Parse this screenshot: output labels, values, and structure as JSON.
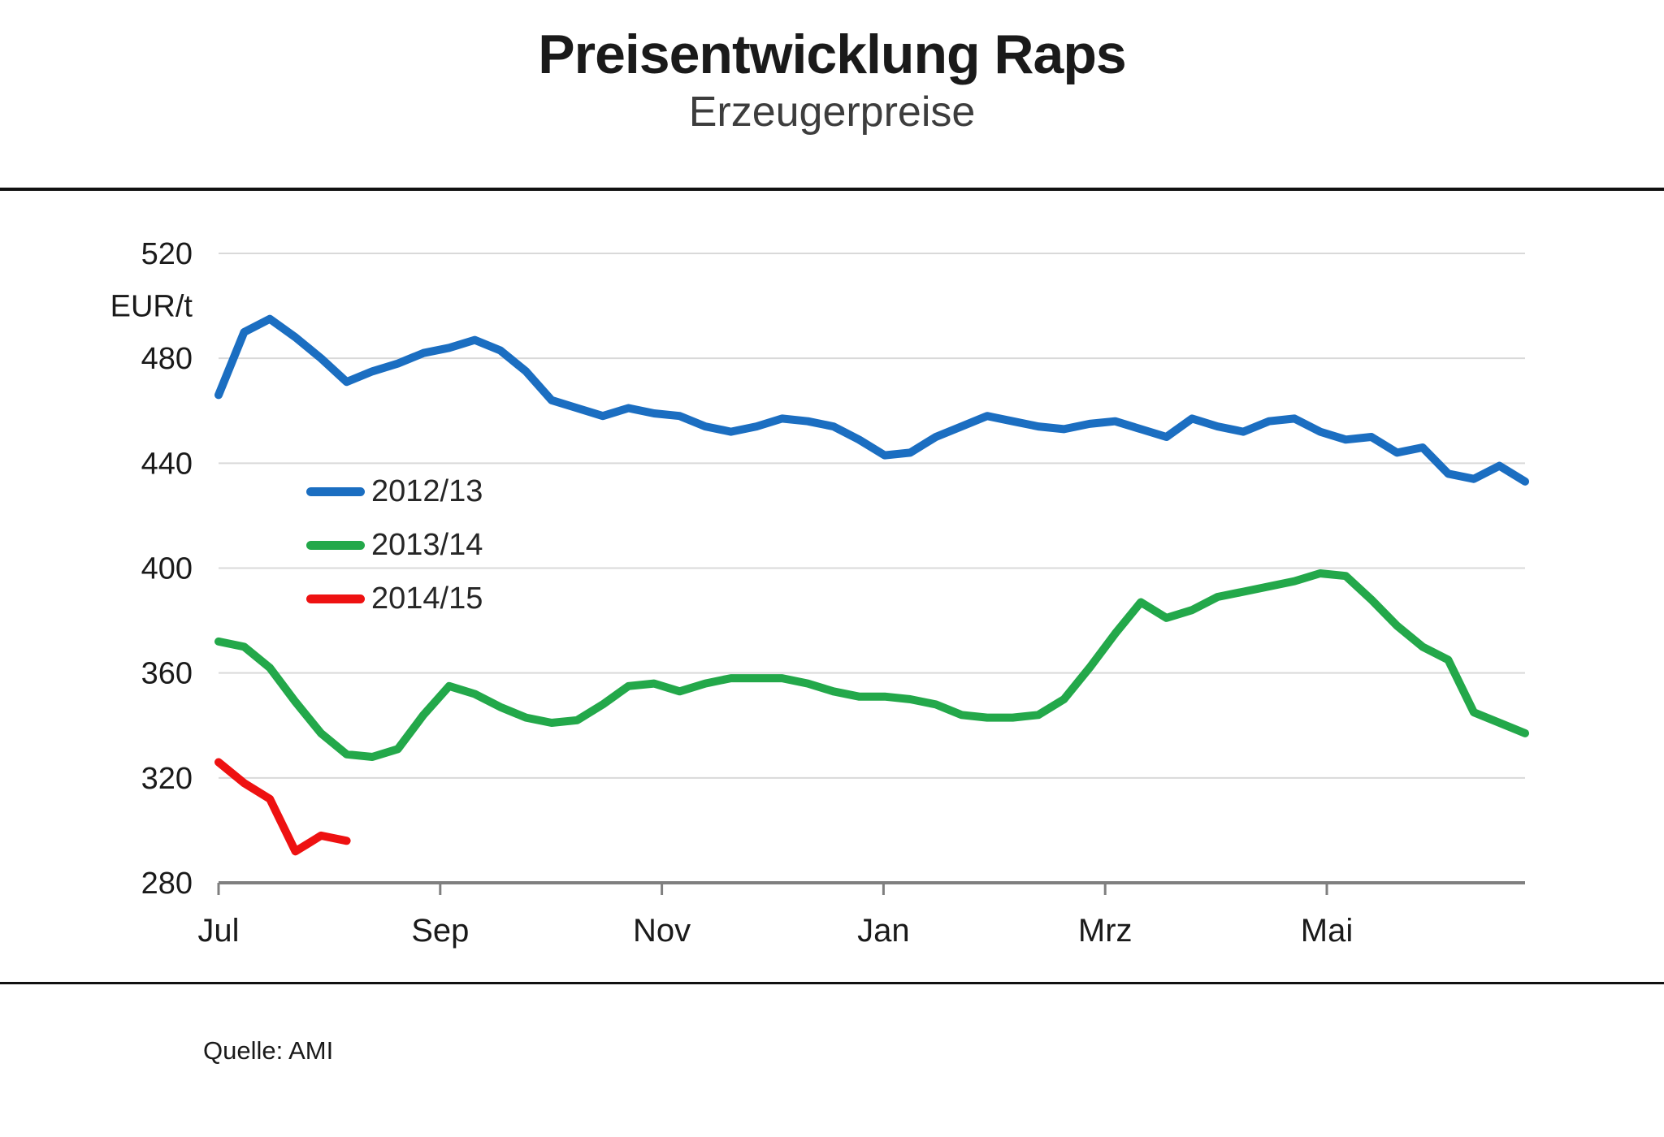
{
  "page": {
    "title": "Preisentwicklung Raps",
    "subtitle": "Erzeugerpreise",
    "source": "Quelle: AMI"
  },
  "chart_data": {
    "type": "line",
    "title": "Preisentwicklung Raps",
    "subtitle": "Erzeugerpreise",
    "ylabel": "EUR/t",
    "ylim": [
      280,
      520
    ],
    "y_ticks": [
      520,
      480,
      440,
      400,
      360,
      320,
      280
    ],
    "x_tick_labels": [
      "Jul",
      "Sep",
      "Nov",
      "Jan",
      "Mrz",
      "Mai"
    ],
    "x_unit": "weeks, Jul through Jun of each season",
    "grid": "horizontal",
    "legend_position": "inside-left",
    "colors": {
      "grid": "#d9d9d9",
      "axis": "#7f7f7f",
      "text": "#1a1a1a"
    },
    "series": [
      {
        "name": "2012/13",
        "color": "#1b6ec1",
        "values": [
          466,
          490,
          495,
          488,
          480,
          471,
          475,
          478,
          482,
          484,
          487,
          483,
          475,
          464,
          461,
          458,
          461,
          459,
          458,
          454,
          452,
          454,
          457,
          456,
          454,
          449,
          443,
          444,
          450,
          454,
          458,
          456,
          454,
          453,
          455,
          456,
          453,
          450,
          457,
          454,
          452,
          456,
          457,
          452,
          449,
          450,
          444,
          446,
          436,
          434,
          439,
          433
        ]
      },
      {
        "name": "2013/14",
        "color": "#23a84a",
        "values": [
          372,
          370,
          362,
          349,
          337,
          329,
          328,
          331,
          344,
          355,
          352,
          347,
          343,
          341,
          342,
          348,
          355,
          356,
          353,
          356,
          358,
          358,
          358,
          356,
          353,
          351,
          351,
          350,
          348,
          344,
          343,
          343,
          344,
          350,
          362,
          375,
          387,
          381,
          384,
          389,
          391,
          393,
          395,
          398,
          397,
          388,
          378,
          370,
          365,
          345,
          341,
          337
        ]
      },
      {
        "name": "2014/15",
        "color": "#ee1111",
        "values": [
          326,
          318,
          312,
          292,
          298,
          296
        ]
      }
    ],
    "source": "Quelle: AMI"
  }
}
